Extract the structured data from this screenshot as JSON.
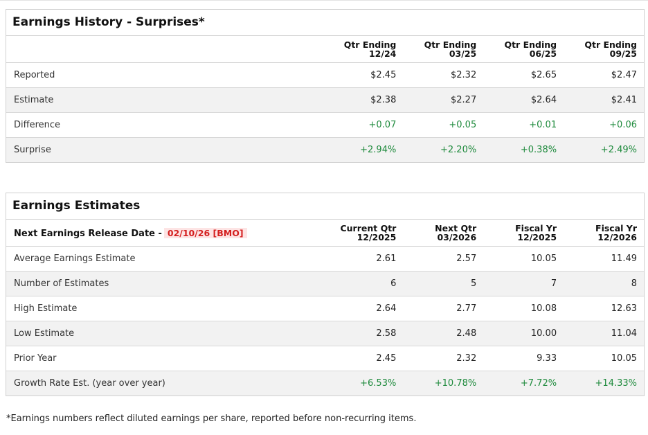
{
  "history": {
    "title": "Earnings History - Surprises*",
    "columns": [
      {
        "line1": "Qtr Ending",
        "line2": "12/24"
      },
      {
        "line1": "Qtr Ending",
        "line2": "03/25"
      },
      {
        "line1": "Qtr Ending",
        "line2": "06/25"
      },
      {
        "line1": "Qtr Ending",
        "line2": "09/25"
      }
    ],
    "rows": [
      {
        "label": "Reported",
        "values": [
          "$2.45",
          "$2.32",
          "$2.65",
          "$2.47"
        ]
      },
      {
        "label": "Estimate",
        "values": [
          "$2.38",
          "$2.27",
          "$2.64",
          "$2.41"
        ]
      },
      {
        "label": "Difference",
        "values": [
          "+0.07",
          "+0.05",
          "+0.01",
          "+0.06"
        ]
      },
      {
        "label": "Surprise",
        "values": [
          "+2.94%",
          "+2.20%",
          "+0.38%",
          "+2.49%"
        ]
      }
    ]
  },
  "estimates": {
    "title": "Earnings Estimates",
    "release_label": "Next Earnings Release Date -",
    "release_date": "02/10/26 [BMO]",
    "columns": [
      {
        "line1": "Current Qtr",
        "line2": "12/2025"
      },
      {
        "line1": "Next Qtr",
        "line2": "03/2026"
      },
      {
        "line1": "Fiscal Yr",
        "line2": "12/2025"
      },
      {
        "line1": "Fiscal Yr",
        "line2": "12/2026"
      }
    ],
    "rows": [
      {
        "label": "Average Earnings Estimate",
        "values": [
          "2.61",
          "2.57",
          "10.05",
          "11.49"
        ]
      },
      {
        "label": "Number of Estimates",
        "values": [
          "6",
          "5",
          "7",
          "8"
        ]
      },
      {
        "label": "High Estimate",
        "values": [
          "2.64",
          "2.77",
          "10.08",
          "12.63"
        ]
      },
      {
        "label": "Low Estimate",
        "values": [
          "2.58",
          "2.48",
          "10.00",
          "11.04"
        ]
      },
      {
        "label": "Prior Year",
        "values": [
          "2.45",
          "2.32",
          "9.33",
          "10.05"
        ]
      },
      {
        "label": "Growth Rate Est. (year over year)",
        "values": [
          "+6.53%",
          "+10.78%",
          "+7.72%",
          "+14.33%"
        ]
      }
    ]
  },
  "footnote": "*Earnings numbers reflect diluted earnings per share, reported before non-recurring items.",
  "colors": {
    "positive": "#1e8a3c",
    "release_date_text": "#d41e1e",
    "release_date_bg": "#fde4e4",
    "row_alt": "#f2f2f2"
  }
}
